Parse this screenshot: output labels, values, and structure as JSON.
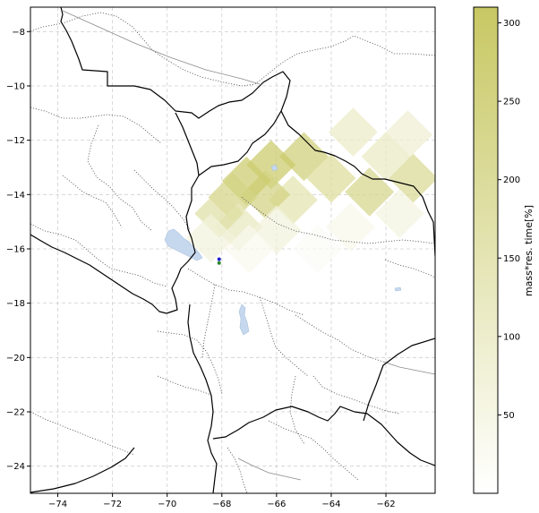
{
  "chart_data": {
    "type": "heatmap",
    "xlim": [
      -75,
      -60.2
    ],
    "ylim": [
      -25,
      -7.1
    ],
    "x_ticks": [
      {
        "value": -74,
        "label": "−74"
      },
      {
        "value": -72,
        "label": "−72"
      },
      {
        "value": -70,
        "label": "−70"
      },
      {
        "value": -68,
        "label": "−68"
      },
      {
        "value": -66,
        "label": "−66"
      },
      {
        "value": -64,
        "label": "−64"
      },
      {
        "value": -62,
        "label": "−62"
      }
    ],
    "y_ticks": [
      {
        "value": -8,
        "label": "−8"
      },
      {
        "value": -10,
        "label": "−10"
      },
      {
        "value": -12,
        "label": "−12"
      },
      {
        "value": -14,
        "label": "−14"
      },
      {
        "value": -16,
        "label": "−16"
      },
      {
        "value": -18,
        "label": "−18"
      },
      {
        "value": -20,
        "label": "−20"
      },
      {
        "value": -22,
        "label": "−22"
      },
      {
        "value": -24,
        "label": "−24"
      }
    ],
    "grid": true,
    "colorbar": {
      "label": "mass*res. time[%]",
      "min": 0,
      "max": 310,
      "ticks": [
        {
          "value": 50,
          "label": "50"
        },
        {
          "value": 100,
          "label": "100"
        },
        {
          "value": 150,
          "label": "150"
        },
        {
          "value": 200,
          "label": "200"
        },
        {
          "value": 250,
          "label": "250"
        },
        {
          "value": 300,
          "label": "300"
        }
      ],
      "color_low": "#ffffff",
      "color_high": "#c8c864"
    },
    "cells": [
      {
        "lon": -62.0,
        "lat": -12.6,
        "value": 120
      },
      {
        "lon": -61.2,
        "lat": -11.8,
        "value": 90
      },
      {
        "lon": -63.2,
        "lat": -11.7,
        "value": 110
      },
      {
        "lon": -62.6,
        "lat": -13.9,
        "value": 230
      },
      {
        "lon": -61.0,
        "lat": -13.4,
        "value": 210
      },
      {
        "lon": -64.0,
        "lat": -13.4,
        "value": 200
      },
      {
        "lon": -65.0,
        "lat": -12.6,
        "value": 270
      },
      {
        "lon": -65.4,
        "lat": -14.2,
        "value": 160
      },
      {
        "lon": -66.2,
        "lat": -12.9,
        "value": 300
      },
      {
        "lon": -66.4,
        "lat": -14.0,
        "value": 250
      },
      {
        "lon": -67.1,
        "lat": -13.5,
        "value": 290
      },
      {
        "lon": -67.6,
        "lat": -14.1,
        "value": 240
      },
      {
        "lon": -67.4,
        "lat": -15.2,
        "value": 130
      },
      {
        "lon": -66.0,
        "lat": -15.3,
        "value": 70
      },
      {
        "lon": -63.3,
        "lat": -15.2,
        "value": 40
      },
      {
        "lon": -61.5,
        "lat": -14.7,
        "value": 60
      },
      {
        "lon": -68.1,
        "lat": -14.7,
        "value": 180
      },
      {
        "lon": -68.4,
        "lat": -15.6,
        "value": 70
      },
      {
        "lon": -67.0,
        "lat": -16.0,
        "value": 30
      },
      {
        "lon": -64.5,
        "lat": -16.0,
        "value": 20
      }
    ],
    "markers": [
      {
        "name": "station-blue",
        "lon": -68.1,
        "lat": -16.38,
        "color": "#1f1fcc"
      },
      {
        "name": "station-green",
        "lon": -68.1,
        "lat": -16.52,
        "color": "#2a8a2a"
      }
    ],
    "lake_color": "#c6d8ee"
  }
}
